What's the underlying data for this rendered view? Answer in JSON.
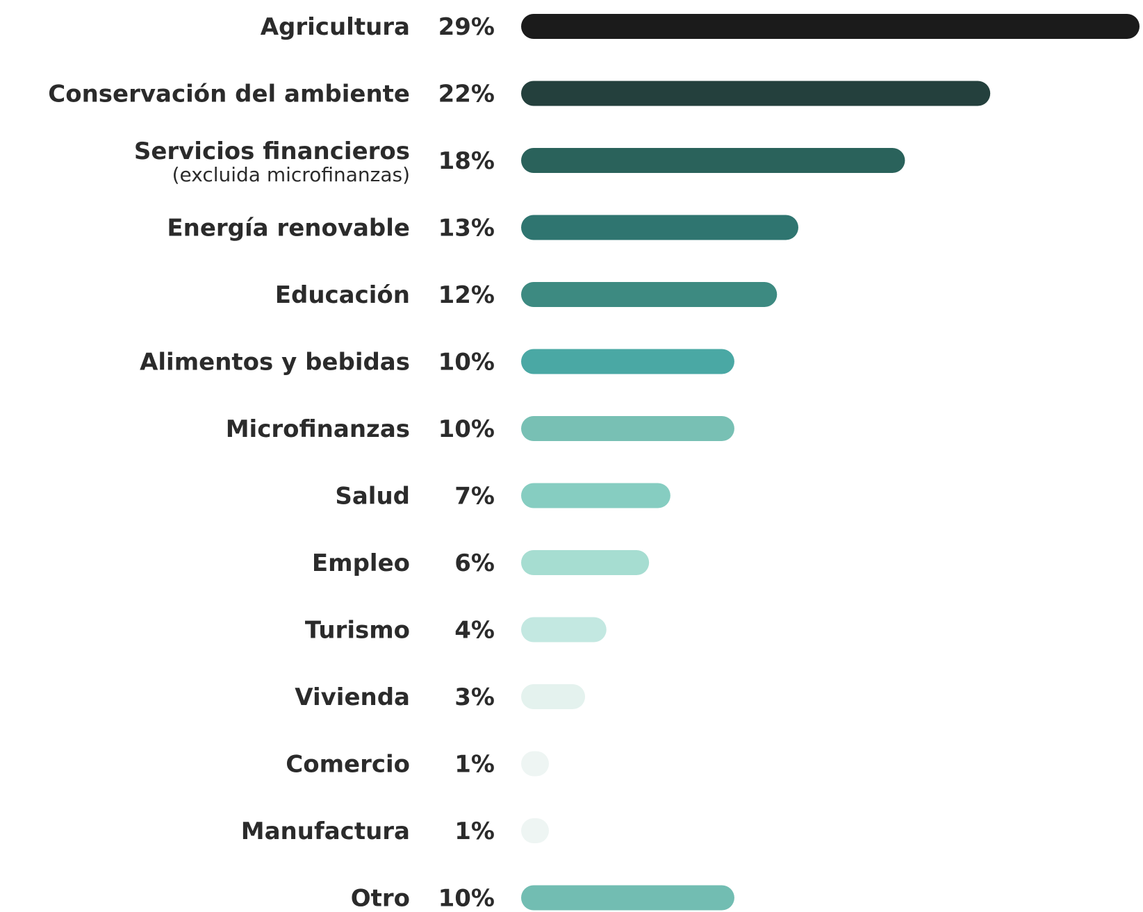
{
  "chart_data": {
    "type": "bar",
    "orientation": "horizontal",
    "categories": [
      "Agricultura",
      "Conservación  del ambiente",
      "Servicios financieros",
      "Energía renovable",
      "Educación",
      "Alimentos y bebidas",
      "Microfinanzas",
      "Salud",
      "Empleo",
      "Turismo",
      "Vivienda",
      "Comercio",
      "Manufactura",
      "Otro"
    ],
    "category_sublabels": [
      "",
      "",
      "(excluida microfinanzas)",
      "",
      "",
      "",
      "",
      "",
      "",
      "",
      "",
      "",
      "",
      ""
    ],
    "values": [
      29,
      22,
      18,
      13,
      12,
      10,
      10,
      7,
      6,
      4,
      3,
      1,
      1,
      10
    ],
    "value_labels": [
      "29%",
      "22%",
      "18%",
      "13%",
      "12%",
      "10%",
      "10%",
      "7%",
      "6%",
      "4%",
      "3%",
      "1%",
      "1%",
      "10%"
    ],
    "colors": [
      "#1b1b1b",
      "#24403d",
      "#2a625b",
      "#2f7570",
      "#3d8a81",
      "#4aa8a4",
      "#78c0b4",
      "#86cdc1",
      "#a6ddd1",
      "#c3e8e1",
      "#e4f2ee",
      "#eef5f3",
      "#eef5f3",
      "#72bdb2"
    ],
    "xlim": [
      0,
      29
    ],
    "grid": false,
    "legend": "none"
  }
}
